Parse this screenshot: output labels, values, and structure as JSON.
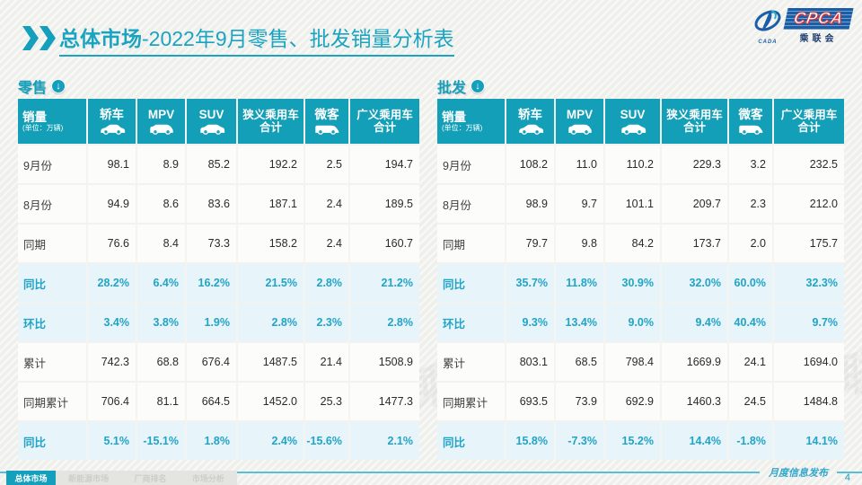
{
  "header": {
    "title_bold": "总体市场",
    "title_rest": "-2022年9月零售、批发销量分析表"
  },
  "logo": {
    "cpca": "CPCA",
    "sub": "乘联会",
    "cada": "CADA"
  },
  "watermark": "CPCA 乘联会",
  "columns": [
    {
      "key": "sales",
      "line1": "销量",
      "line2": "(单位：万辆)"
    },
    {
      "key": "sedan",
      "line1": "轿车",
      "icon": "sedan-icon"
    },
    {
      "key": "mpv",
      "line1": "MPV",
      "icon": "mpv-icon"
    },
    {
      "key": "suv",
      "line1": "SUV",
      "icon": "suv-icon"
    },
    {
      "key": "narrow-total",
      "line1": "狭义乘用车",
      "line2": "合计",
      "sum": true
    },
    {
      "key": "minibus",
      "line1": "微客",
      "icon": "minibus-icon"
    },
    {
      "key": "broad-total",
      "line1": "广义乘用车",
      "line2": "合计",
      "sum": true
    }
  ],
  "tables": [
    {
      "section": "零售",
      "rows": [
        {
          "label": "9月份",
          "type": "normal",
          "values": [
            "98.1",
            "8.9",
            "85.2",
            "192.2",
            "2.5",
            "194.7"
          ]
        },
        {
          "label": "8月份",
          "type": "normal",
          "values": [
            "94.9",
            "8.6",
            "83.6",
            "187.1",
            "2.4",
            "189.5"
          ]
        },
        {
          "label": "同期",
          "type": "normal",
          "values": [
            "76.6",
            "8.4",
            "73.3",
            "158.2",
            "2.4",
            "160.7"
          ]
        },
        {
          "label": "同比",
          "type": "percent",
          "values": [
            "28.2%",
            "6.4%",
            "16.2%",
            "21.5%",
            "2.8%",
            "21.2%"
          ]
        },
        {
          "label": "环比",
          "type": "percent",
          "values": [
            "3.4%",
            "3.8%",
            "1.9%",
            "2.8%",
            "2.3%",
            "2.8%"
          ]
        },
        {
          "label": "累计",
          "type": "normal",
          "values": [
            "742.3",
            "68.8",
            "676.4",
            "1487.5",
            "21.4",
            "1508.9"
          ]
        },
        {
          "label": "同期累计",
          "type": "normal",
          "values": [
            "706.4",
            "81.1",
            "664.5",
            "1452.0",
            "25.3",
            "1477.3"
          ]
        },
        {
          "label": "同比",
          "type": "percent",
          "values": [
            "5.1%",
            "-15.1%",
            "1.8%",
            "2.4%",
            "-15.6%",
            "2.1%"
          ]
        }
      ]
    },
    {
      "section": "批发",
      "rows": [
        {
          "label": "9月份",
          "type": "normal",
          "values": [
            "108.2",
            "11.0",
            "110.2",
            "229.3",
            "3.2",
            "232.5"
          ]
        },
        {
          "label": "8月份",
          "type": "normal",
          "values": [
            "98.9",
            "9.7",
            "101.1",
            "209.7",
            "2.3",
            "212.0"
          ]
        },
        {
          "label": "同期",
          "type": "normal",
          "values": [
            "79.7",
            "9.8",
            "84.2",
            "173.7",
            "2.0",
            "175.7"
          ]
        },
        {
          "label": "同比",
          "type": "percent",
          "values": [
            "35.7%",
            "11.8%",
            "30.9%",
            "32.0%",
            "60.0%",
            "32.3%"
          ]
        },
        {
          "label": "环比",
          "type": "percent",
          "values": [
            "9.3%",
            "13.4%",
            "9.0%",
            "9.4%",
            "40.4%",
            "9.7%"
          ]
        },
        {
          "label": "累计",
          "type": "normal",
          "values": [
            "803.1",
            "68.5",
            "798.4",
            "1669.9",
            "24.1",
            "1694.0"
          ]
        },
        {
          "label": "同期累计",
          "type": "normal",
          "values": [
            "693.5",
            "73.9",
            "692.9",
            "1460.3",
            "24.5",
            "1484.8"
          ]
        },
        {
          "label": "同比",
          "type": "percent",
          "values": [
            "15.8%",
            "-7.3%",
            "15.2%",
            "14.4%",
            "-1.8%",
            "14.1%"
          ]
        }
      ]
    }
  ],
  "footer": {
    "tabs": [
      {
        "label": "总体市场",
        "active": true
      },
      {
        "label": "新能源市场",
        "active": false
      },
      {
        "label": "厂商排名",
        "active": false
      },
      {
        "label": "市场分析",
        "active": false
      }
    ],
    "publish_label": "月度信息发布",
    "page_number": "4",
    "arrow_glyph": "↓"
  },
  "colors": {
    "accent_teal": "#129FB7",
    "percent_text": "#21A4C6",
    "percent_row_bg": "#E7F4FA",
    "logo_blue": "#1B5EA8",
    "logo_red": "#D3343A",
    "footer_line": "#56C0DB"
  }
}
